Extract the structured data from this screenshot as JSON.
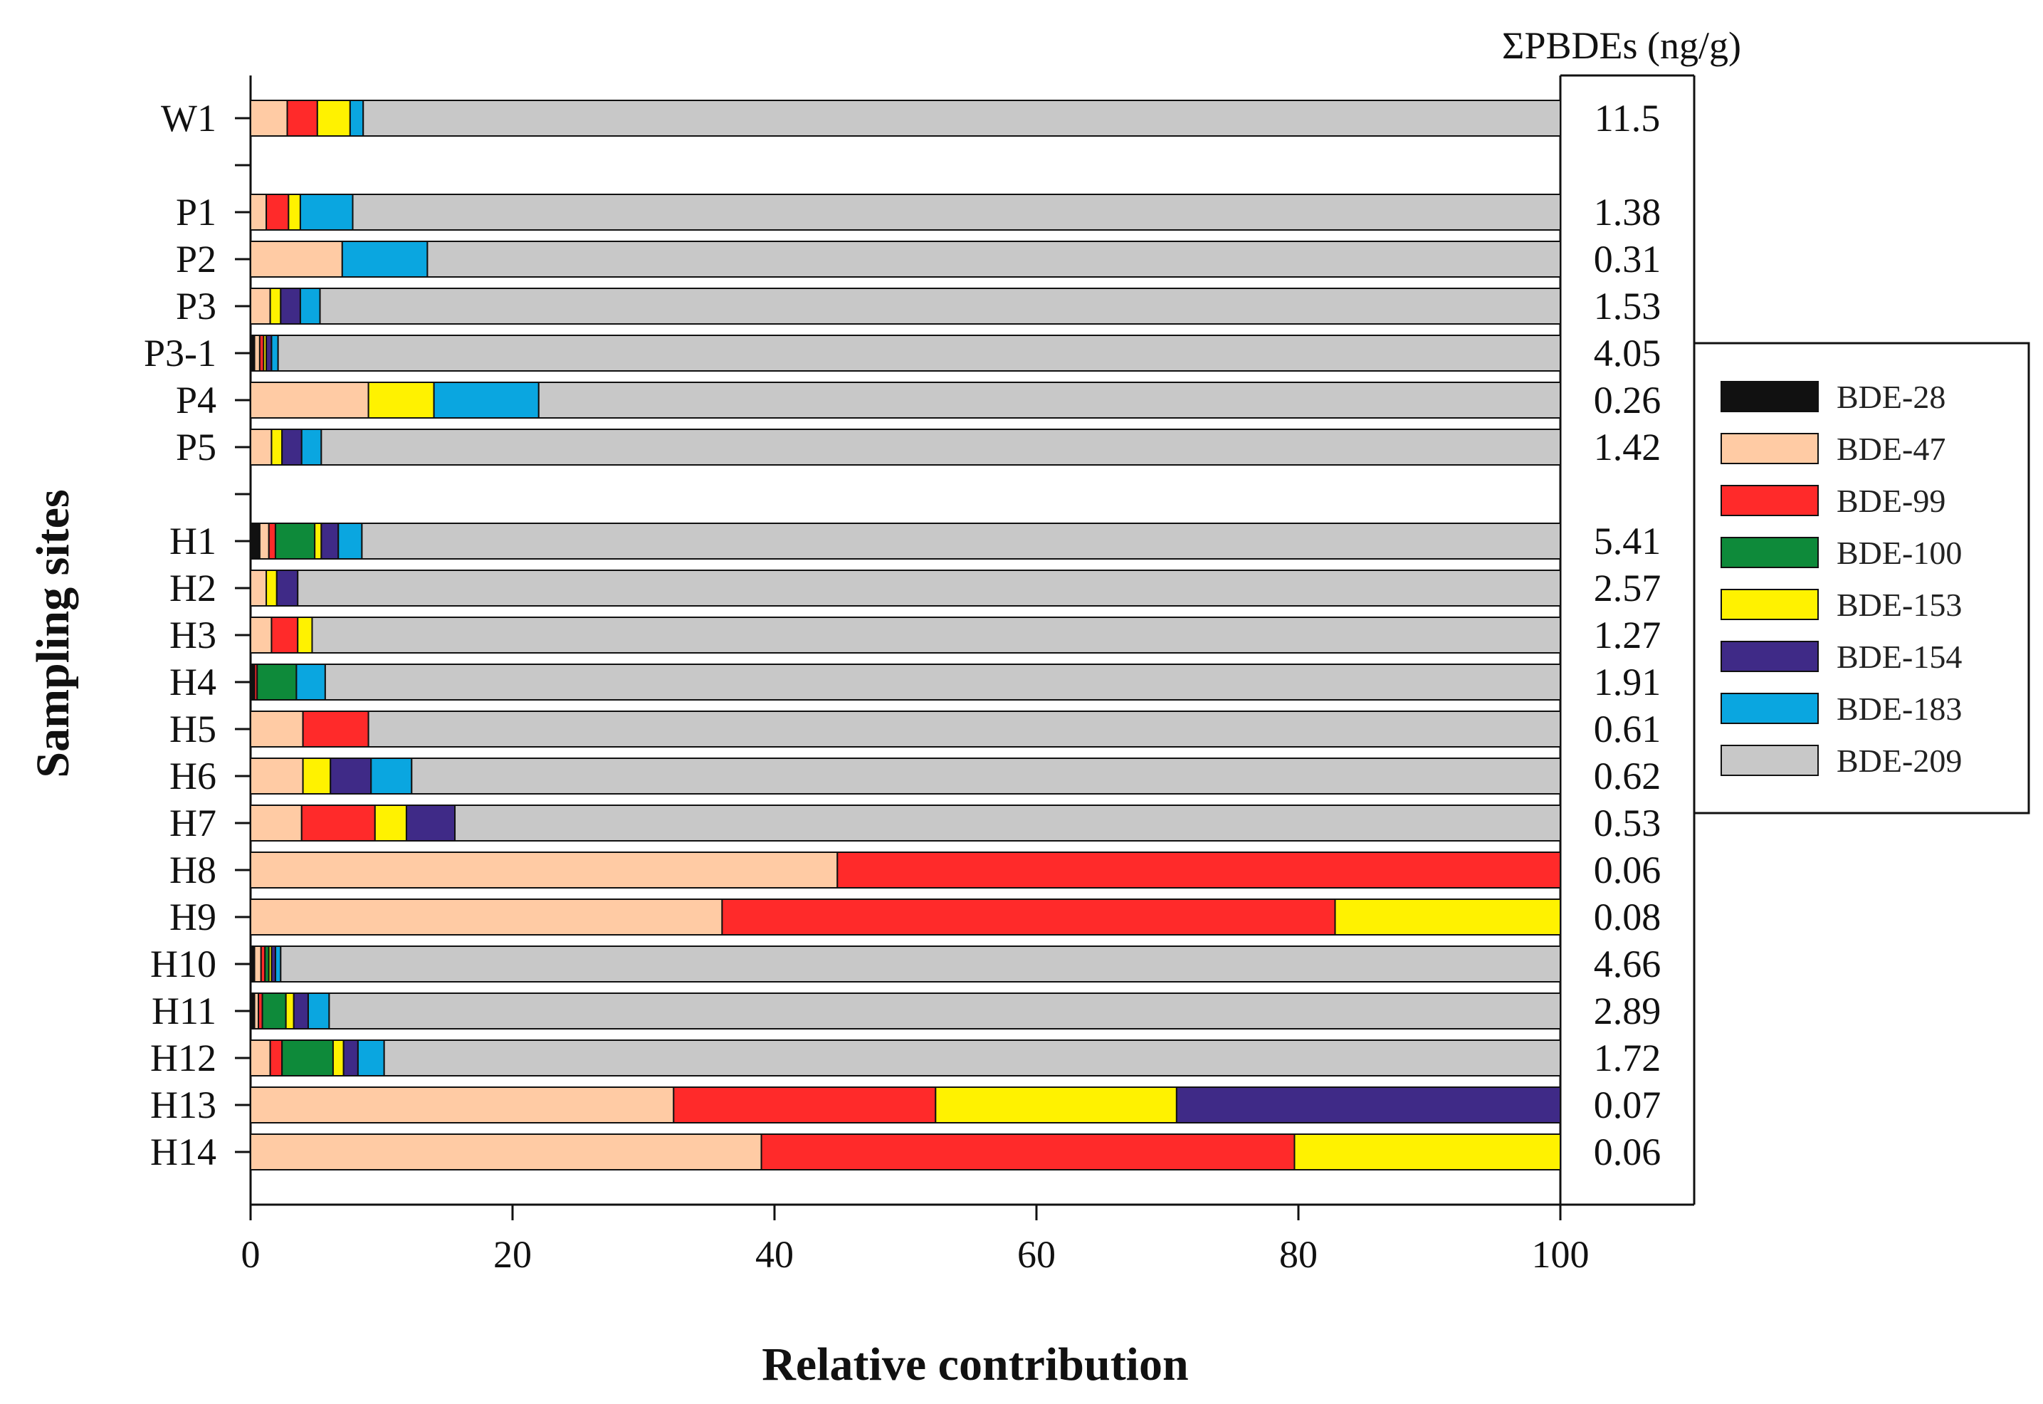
{
  "chart_data": {
    "type": "bar",
    "orientation": "horizontal",
    "stacked": true,
    "title": "",
    "xlabel": "Relative contribution",
    "ylabel": "Sampling sites",
    "xlim": [
      0,
      100
    ],
    "xticks": [
      "0",
      "20",
      "40",
      "60",
      "80",
      "100"
    ],
    "totals_header": "ΣPBDEs (ng/g)",
    "legend_position": "right",
    "series": [
      {
        "name": "BDE-28",
        "color": "#111111"
      },
      {
        "name": "BDE-47",
        "color": "#FFCBA4"
      },
      {
        "name": "BDE-99",
        "color": "#FF2A2A"
      },
      {
        "name": "BDE-100",
        "color": "#0E8A3A"
      },
      {
        "name": "BDE-153",
        "color": "#FFF200"
      },
      {
        "name": "BDE-154",
        "color": "#3F2A87"
      },
      {
        "name": "BDE-183",
        "color": "#0AA6E0"
      },
      {
        "name": "BDE-209",
        "color": "#C8C8C8"
      }
    ],
    "rows": [
      {
        "site": "W1",
        "total": "11.5",
        "values": [
          0,
          2.8,
          2.3,
          0,
          2.5,
          0,
          1.0,
          91.4
        ]
      },
      {
        "site": "P1",
        "total": "1.38",
        "values": [
          0,
          1.2,
          1.7,
          0,
          0.9,
          0,
          4.0,
          92.2
        ]
      },
      {
        "site": "P2",
        "total": "0.31",
        "values": [
          0,
          7.0,
          0,
          0,
          0,
          0,
          6.5,
          86.5
        ]
      },
      {
        "site": "P3",
        "total": "1.53",
        "values": [
          0,
          1.5,
          0,
          0,
          0.8,
          1.5,
          1.5,
          94.7
        ]
      },
      {
        "site": "P3-1",
        "total": "4.05",
        "values": [
          0.3,
          0.4,
          0.3,
          0,
          0.2,
          0.4,
          0.5,
          97.9
        ]
      },
      {
        "site": "P4",
        "total": "0.26",
        "values": [
          0,
          9.0,
          0,
          0,
          5.0,
          0,
          8.0,
          78.0
        ]
      },
      {
        "site": "P5",
        "total": "1.42",
        "values": [
          0,
          1.6,
          0,
          0,
          0.8,
          1.5,
          1.5,
          94.6
        ]
      },
      {
        "site": "H1",
        "total": "5.41",
        "values": [
          0.7,
          0.7,
          0.5,
          3.0,
          0.5,
          1.3,
          1.8,
          91.5
        ]
      },
      {
        "site": "H2",
        "total": "2.57",
        "values": [
          0,
          1.2,
          0,
          0,
          0.8,
          1.6,
          0,
          96.4
        ]
      },
      {
        "site": "H3",
        "total": "1.27",
        "values": [
          0,
          1.6,
          2.0,
          0,
          1.1,
          0,
          0,
          95.3
        ]
      },
      {
        "site": "H4",
        "total": "1.91",
        "values": [
          0.3,
          0,
          0.2,
          3.0,
          0,
          0,
          2.2,
          94.3
        ]
      },
      {
        "site": "H5",
        "total": "0.61",
        "values": [
          0,
          4.0,
          5.0,
          0,
          0,
          0,
          0,
          91.0
        ]
      },
      {
        "site": "H6",
        "total": "0.62",
        "values": [
          0,
          4.0,
          0,
          0,
          2.1,
          3.1,
          3.1,
          87.7
        ]
      },
      {
        "site": "H7",
        "total": "0.53",
        "values": [
          0,
          3.9,
          5.6,
          0,
          2.4,
          3.7,
          0,
          84.4
        ]
      },
      {
        "site": "H8",
        "total": "0.06",
        "values": [
          0,
          44.8,
          55.2,
          0,
          0,
          0,
          0,
          0
        ]
      },
      {
        "site": "H9",
        "total": "0.08",
        "values": [
          0,
          36.0,
          46.8,
          0,
          17.2,
          0,
          0,
          0
        ]
      },
      {
        "site": "H10",
        "total": "4.66",
        "values": [
          0.3,
          0.5,
          0.3,
          0.3,
          0.2,
          0.3,
          0.4,
          97.7
        ]
      },
      {
        "site": "H11",
        "total": "2.89",
        "values": [
          0.3,
          0.3,
          0.3,
          1.8,
          0.6,
          1.1,
          1.6,
          94.0
        ]
      },
      {
        "site": "H12",
        "total": "1.72",
        "values": [
          0,
          1.5,
          0.9,
          3.9,
          0.8,
          1.1,
          2.0,
          89.8
        ]
      },
      {
        "site": "H13",
        "total": "0.07",
        "values": [
          0,
          32.3,
          20.0,
          0,
          18.4,
          29.3,
          0,
          0
        ]
      },
      {
        "site": "H14",
        "total": "0.06",
        "values": [
          0,
          39.0,
          40.7,
          0,
          20.3,
          0,
          0,
          0
        ]
      }
    ]
  }
}
